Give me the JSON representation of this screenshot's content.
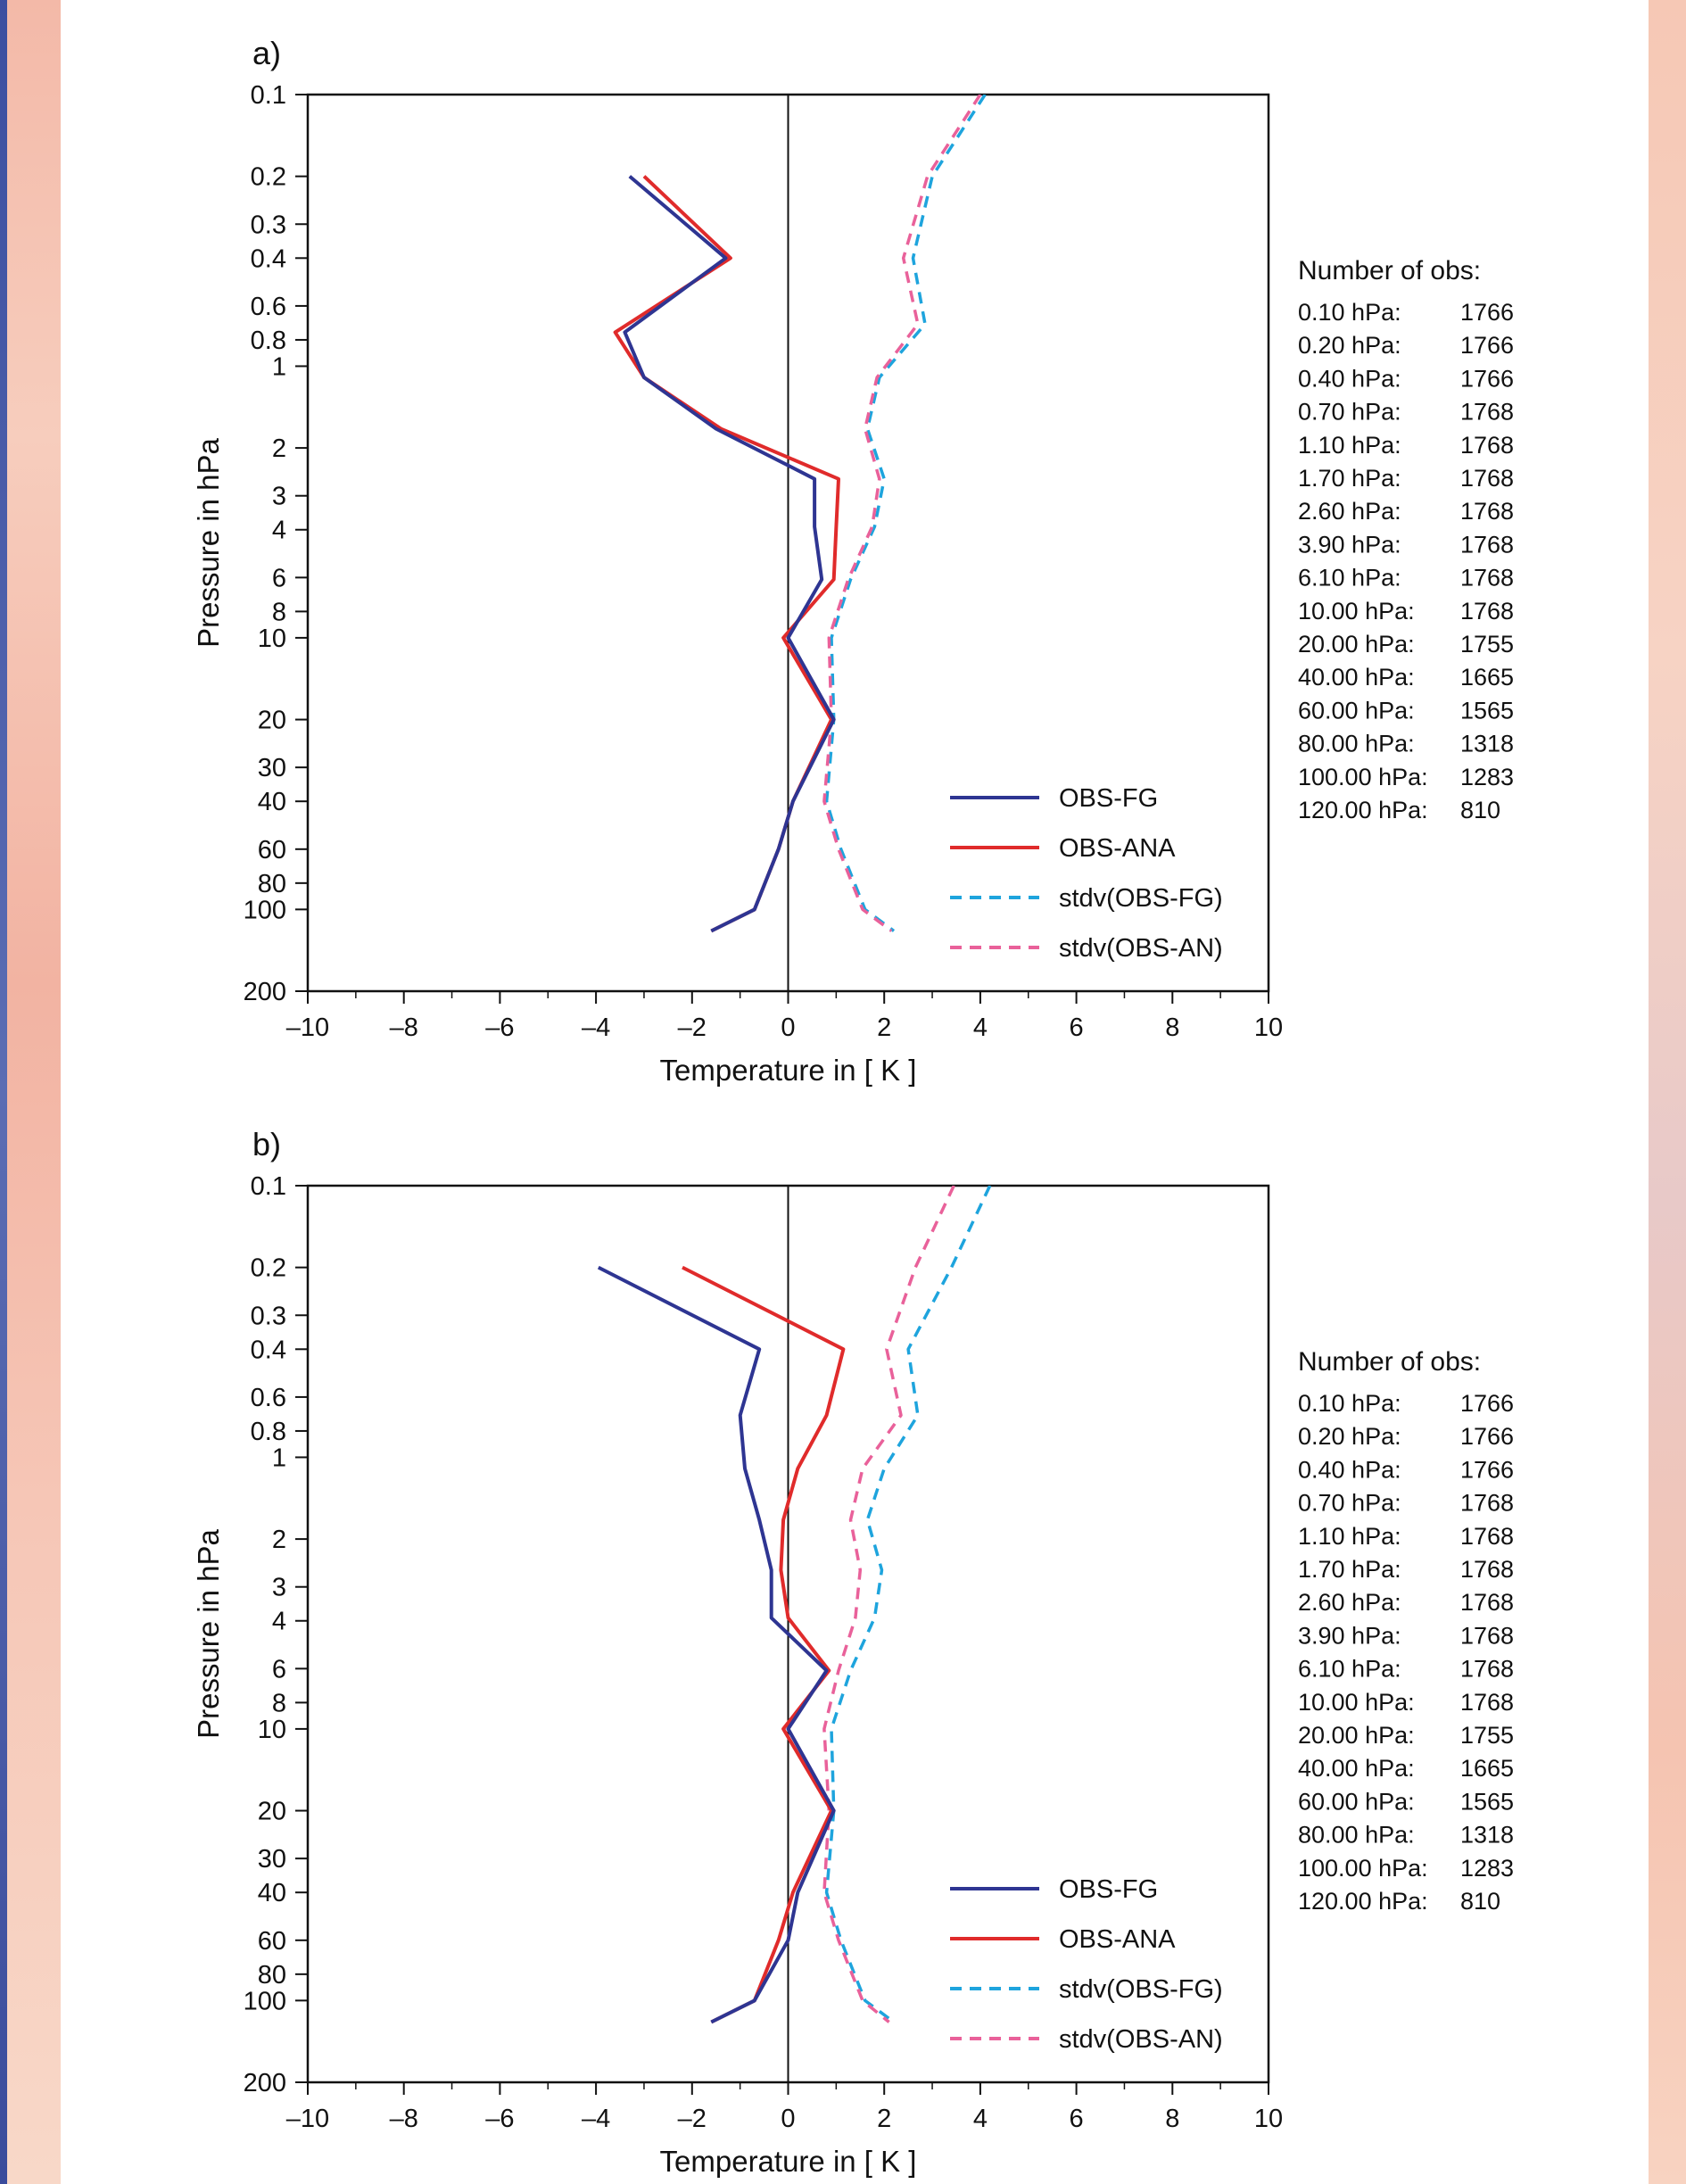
{
  "colors": {
    "obs_fg": "#2e3592",
    "obs_ana": "#e02b2b",
    "stdv_fg": "#1ea4dd",
    "stdv_an": "#e9619a"
  },
  "chart_data": [
    {
      "type": "line",
      "panel_label": "a)",
      "title": "",
      "xlabel": "Temperature in [ K ]",
      "ylabel": "Pressure in hPa",
      "xlim": [
        -10,
        10
      ],
      "ylim": [
        200,
        0.1
      ],
      "yscale": "log",
      "xticks": [
        "–10",
        "–8",
        "–6",
        "–4",
        "–2",
        "0",
        "2",
        "4",
        "6",
        "8",
        "10"
      ],
      "yticks": [
        "0.1",
        "0.2",
        "0.3",
        "0.4",
        "0.6",
        "0.8",
        "1",
        "2",
        "3",
        "4",
        "6",
        "8",
        "10",
        "20",
        "30",
        "40",
        "60",
        "80",
        "100",
        "200"
      ],
      "vline_x": 0,
      "legend_position": "lower-right",
      "series": [
        {
          "name": "OBS-FG",
          "style": "solid",
          "x": [
            -3.3,
            -1.3,
            -3.4,
            -3.0,
            -1.5,
            0.55,
            0.55,
            0.7,
            0.0,
            0.95,
            0.1,
            -0.2,
            -0.7,
            -1.6
          ],
          "y": [
            0.2,
            0.4,
            0.75,
            1.1,
            1.7,
            2.6,
            3.9,
            6.1,
            10,
            20,
            40,
            60,
            100,
            120
          ]
        },
        {
          "name": "OBS-ANA",
          "style": "solid",
          "x": [
            -3.0,
            -1.2,
            -3.6,
            -3.0,
            -1.4,
            1.05,
            1.0,
            0.95,
            -0.1,
            0.9,
            0.1,
            -0.2,
            -0.7,
            -1.6
          ],
          "y": [
            0.2,
            0.4,
            0.75,
            1.1,
            1.7,
            2.6,
            3.9,
            6.1,
            10,
            20,
            40,
            60,
            100,
            120
          ]
        },
        {
          "name": "stdv(OBS-FG)",
          "style": "dashed",
          "x": [
            4.1,
            3.0,
            2.6,
            2.85,
            1.9,
            1.65,
            2.0,
            1.8,
            1.3,
            0.9,
            0.95,
            0.8,
            1.1,
            1.6,
            2.2
          ],
          "y": [
            0.1,
            0.2,
            0.4,
            0.7,
            1.1,
            1.7,
            2.6,
            3.9,
            6.1,
            10,
            20,
            40,
            60,
            100,
            120
          ]
        },
        {
          "name": "stdv(OBS-AN)",
          "style": "dashed",
          "x": [
            4.0,
            2.9,
            2.4,
            2.7,
            1.85,
            1.6,
            1.9,
            1.75,
            1.25,
            0.85,
            0.9,
            0.75,
            1.05,
            1.55,
            2.15
          ],
          "y": [
            0.1,
            0.2,
            0.4,
            0.7,
            1.1,
            1.7,
            2.6,
            3.9,
            6.1,
            10,
            20,
            40,
            60,
            100,
            120
          ]
        }
      ],
      "obs_title": "Number of obs:",
      "obs_counts": [
        [
          "0.10 hPa:",
          "1766"
        ],
        [
          "0.20 hPa:",
          "1766"
        ],
        [
          "0.40 hPa:",
          "1766"
        ],
        [
          "0.70 hPa:",
          "1768"
        ],
        [
          "1.10 hPa:",
          "1768"
        ],
        [
          "1.70 hPa:",
          "1768"
        ],
        [
          "2.60 hPa:",
          "1768"
        ],
        [
          "3.90 hPa:",
          "1768"
        ],
        [
          "6.10 hPa:",
          "1768"
        ],
        [
          "10.00 hPa:",
          "1768"
        ],
        [
          "20.00 hPa:",
          "1755"
        ],
        [
          "40.00 hPa:",
          "1665"
        ],
        [
          "60.00 hPa:",
          "1565"
        ],
        [
          "80.00 hPa:",
          "1318"
        ],
        [
          "100.00 hPa:",
          "1283"
        ],
        [
          "120.00 hPa:",
          "810"
        ]
      ]
    },
    {
      "type": "line",
      "panel_label": "b)",
      "title": "",
      "xlabel": "Temperature in [ K ]",
      "ylabel": "Pressure in hPa",
      "xlim": [
        -10,
        10
      ],
      "ylim": [
        200,
        0.1
      ],
      "yscale": "log",
      "xticks": [
        "–10",
        "–8",
        "–6",
        "–4",
        "–2",
        "0",
        "2",
        "4",
        "6",
        "8",
        "10"
      ],
      "yticks": [
        "0.1",
        "0.2",
        "0.3",
        "0.4",
        "0.6",
        "0.8",
        "1",
        "2",
        "3",
        "4",
        "6",
        "8",
        "10",
        "20",
        "30",
        "40",
        "60",
        "80",
        "100",
        "200"
      ],
      "vline_x": 0,
      "legend_position": "lower-right",
      "series": [
        {
          "name": "OBS-FG",
          "style": "solid",
          "x": [
            -3.95,
            -0.6,
            -1.0,
            -0.9,
            -0.6,
            -0.35,
            -0.35,
            0.8,
            0.0,
            0.95,
            0.2,
            0.0,
            -0.7,
            -1.6
          ],
          "y": [
            0.2,
            0.4,
            0.7,
            1.1,
            1.7,
            2.6,
            3.9,
            6.1,
            10,
            20,
            40,
            60,
            100,
            120
          ]
        },
        {
          "name": "OBS-ANA",
          "style": "solid",
          "x": [
            -2.2,
            1.15,
            0.8,
            0.2,
            -0.1,
            -0.15,
            0.0,
            0.85,
            -0.1,
            0.9,
            0.1,
            -0.2,
            -0.7,
            -1.6
          ],
          "y": [
            0.2,
            0.4,
            0.7,
            1.1,
            1.7,
            2.6,
            3.9,
            6.1,
            10,
            20,
            40,
            60,
            100,
            120
          ]
        },
        {
          "name": "stdv(OBS-FG)",
          "style": "dashed",
          "x": [
            4.2,
            3.4,
            2.5,
            2.7,
            2.0,
            1.65,
            1.95,
            1.8,
            1.3,
            0.9,
            0.95,
            0.8,
            1.1,
            1.6,
            2.2
          ],
          "y": [
            0.1,
            0.2,
            0.4,
            0.7,
            1.1,
            1.7,
            2.6,
            3.9,
            6.1,
            10,
            20,
            40,
            60,
            100,
            120
          ]
        },
        {
          "name": "stdv(OBS-AN)",
          "style": "dashed",
          "x": [
            3.45,
            2.65,
            2.05,
            2.35,
            1.55,
            1.3,
            1.5,
            1.4,
            1.05,
            0.75,
            0.85,
            0.75,
            1.05,
            1.55,
            2.1
          ],
          "y": [
            0.1,
            0.2,
            0.4,
            0.7,
            1.1,
            1.7,
            2.6,
            3.9,
            6.1,
            10,
            20,
            40,
            60,
            100,
            120
          ]
        }
      ],
      "obs_title": "Number of obs:",
      "obs_counts": [
        [
          "0.10 hPa:",
          "1766"
        ],
        [
          "0.20 hPa:",
          "1766"
        ],
        [
          "0.40 hPa:",
          "1766"
        ],
        [
          "0.70 hPa:",
          "1768"
        ],
        [
          "1.10 hPa:",
          "1768"
        ],
        [
          "1.70 hPa:",
          "1768"
        ],
        [
          "2.60 hPa:",
          "1768"
        ],
        [
          "3.90 hPa:",
          "1768"
        ],
        [
          "6.10 hPa:",
          "1768"
        ],
        [
          "10.00 hPa:",
          "1768"
        ],
        [
          "20.00 hPa:",
          "1755"
        ],
        [
          "40.00 hPa:",
          "1665"
        ],
        [
          "60.00 hPa:",
          "1565"
        ],
        [
          "80.00 hPa:",
          "1318"
        ],
        [
          "100.00 hPa:",
          "1283"
        ],
        [
          "120.00 hPa:",
          "810"
        ]
      ]
    }
  ]
}
